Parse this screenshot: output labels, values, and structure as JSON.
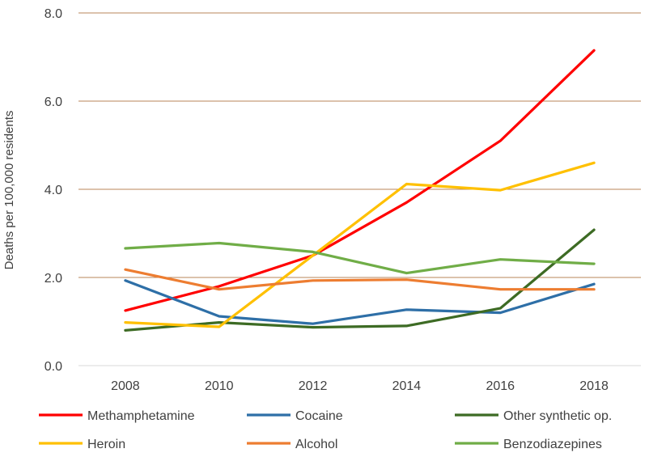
{
  "chart_data": {
    "type": "line",
    "title": "",
    "xlabel": "",
    "ylabel": "Deaths per 100,000 residents",
    "categories": [
      "2008",
      "2010",
      "2012",
      "2014",
      "2016",
      "2018"
    ],
    "ylim": [
      0,
      8
    ],
    "yticks": [
      "0.0",
      "2.0",
      "4.0",
      "6.0",
      "8.0"
    ],
    "grid": true,
    "legend_position": "bottom",
    "series": [
      {
        "name": "Methamphetamine",
        "color": "#ff0000",
        "values": [
          1.25,
          1.8,
          2.5,
          3.7,
          5.1,
          7.15
        ]
      },
      {
        "name": "Cocaine",
        "color": "#2e6fa7",
        "values": [
          1.93,
          1.12,
          0.95,
          1.27,
          1.2,
          1.85
        ]
      },
      {
        "name": "Other synthetic op.",
        "color": "#3d6b24",
        "values": [
          0.8,
          0.98,
          0.87,
          0.9,
          1.3,
          3.08
        ]
      },
      {
        "name": "Heroin",
        "color": "#ffc000",
        "values": [
          0.98,
          0.88,
          2.5,
          4.12,
          3.98,
          4.6
        ]
      },
      {
        "name": "Alcohol",
        "color": "#ed7d31",
        "values": [
          2.18,
          1.73,
          1.93,
          1.95,
          1.73,
          1.73
        ]
      },
      {
        "name": "Benzodiazepines",
        "color": "#70ad47",
        "values": [
          2.66,
          2.78,
          2.58,
          2.1,
          2.41,
          2.31
        ]
      }
    ]
  }
}
